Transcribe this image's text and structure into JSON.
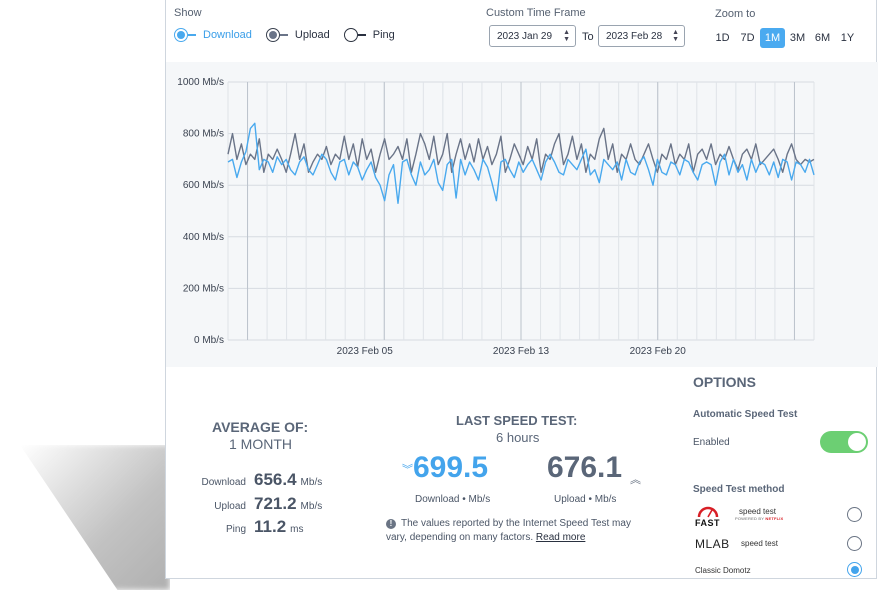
{
  "show": {
    "label": "Show",
    "legend": [
      {
        "label": "Download",
        "color": "#49a9ee",
        "checked": true
      },
      {
        "label": "Upload",
        "color": "#6a7488",
        "checked": true
      },
      {
        "label": "Ping",
        "color": "#2a3140",
        "checked": false
      }
    ]
  },
  "timeframe": {
    "label": "Custom Time Frame",
    "from": "2023 Jan 29",
    "to_label": "To",
    "to": "2023 Feb 28"
  },
  "zoom": {
    "label": "Zoom to",
    "options": [
      "1D",
      "7D",
      "1M",
      "3M",
      "6M",
      "1Y"
    ],
    "active": "1M"
  },
  "chart_data": {
    "type": "line",
    "ylim": [
      0,
      1000
    ],
    "yticks": [
      "0 Mb/s",
      "200 Mb/s",
      "400 Mb/s",
      "600 Mb/s",
      "800 Mb/s",
      "1000 Mb/s"
    ],
    "ytick_values": [
      0,
      200,
      400,
      600,
      800,
      1000
    ],
    "xticks": [
      "2023 Feb 05",
      "2023 Feb 13",
      "2023 Feb 20"
    ],
    "grid": true,
    "series": [
      {
        "color": "#49a9ee",
        "values": [
          690,
          700,
          630,
          690,
          730,
          820,
          840,
          660,
          700,
          690,
          650,
          710,
          680,
          700,
          660,
          640,
          690,
          710,
          660,
          640,
          680,
          720,
          700,
          650,
          620,
          690,
          700,
          640,
          690,
          670,
          620,
          660,
          690,
          630,
          600,
          540,
          640,
          680,
          530,
          690,
          700,
          640,
          600,
          690,
          640,
          660,
          700,
          610,
          580,
          680,
          700,
          550,
          700,
          640,
          690,
          660,
          620,
          700,
          670,
          610,
          540,
          690,
          700,
          660,
          630,
          690,
          650,
          680,
          700,
          660,
          620,
          690,
          720,
          690,
          650,
          640,
          700,
          680,
          660,
          700,
          740,
          640,
          660,
          610,
          700,
          680,
          660,
          690,
          620,
          700,
          650,
          640,
          690,
          710,
          660,
          600,
          700,
          650,
          640,
          690,
          680,
          640,
          700,
          690,
          650,
          620,
          680,
          690,
          680,
          600,
          690,
          720,
          640,
          700,
          650,
          680,
          620,
          700,
          650,
          690,
          680,
          640,
          690,
          630,
          700,
          690,
          620,
          690,
          680,
          650,
          700,
          640
        ]
      },
      {
        "color": "#6a7488",
        "values": [
          720,
          800,
          700,
          760,
          680,
          720,
          700,
          780,
          650,
          720,
          700,
          740,
          700,
          650,
          720,
          800,
          700,
          760,
          650,
          690,
          720,
          700,
          750,
          680,
          720,
          700,
          790,
          700,
          760,
          670,
          780,
          700,
          740,
          650,
          720,
          780,
          700,
          720,
          750,
          700,
          780,
          650,
          720,
          800,
          760,
          700,
          790,
          680,
          720,
          800,
          650,
          720,
          780,
          700,
          760,
          690,
          780,
          700,
          750,
          680,
          720,
          790,
          650,
          700,
          760,
          720,
          680,
          750,
          700,
          780,
          650,
          720,
          700,
          760,
          800,
          680,
          720,
          790,
          700,
          760,
          650,
          720,
          700,
          780,
          820,
          700,
          760,
          650,
          720,
          700,
          760,
          700,
          680,
          720,
          760,
          700,
          650,
          720,
          700,
          760,
          680,
          720,
          700,
          760,
          650,
          720,
          740,
          700,
          760,
          680,
          720,
          700,
          750,
          700,
          660,
          720,
          740,
          700,
          760,
          680,
          700,
          720,
          740,
          700,
          650,
          720,
          760,
          700,
          680,
          700,
          690,
          700
        ]
      }
    ]
  },
  "average": {
    "title": "AVERAGE OF:",
    "period": "1 MONTH",
    "rows": [
      {
        "label": "Download",
        "value": "656.4",
        "unit": "Mb/s"
      },
      {
        "label": "Upload",
        "value": "721.2",
        "unit": "Mb/s"
      },
      {
        "label": "Ping",
        "value": "11.2",
        "unit": "ms"
      }
    ]
  },
  "last_test": {
    "title": "LAST SPEED TEST:",
    "ago": "6 hours",
    "download_value": "699.5",
    "download_caption": "Download • Mb/s",
    "upload_value": "676.1",
    "upload_caption": "Upload • Mb/s",
    "note": "The values reported by the Internet Speed Test may vary, depending on many factors.",
    "note_link": "Read more"
  },
  "options": {
    "title": "OPTIONS",
    "auto_label": "Automatic Speed Test",
    "enabled_label": "Enabled",
    "enabled": true,
    "method_label": "Speed Test method",
    "methods": [
      {
        "logo": "FAST",
        "text": "speed test",
        "sub_prefix": "POWERED BY",
        "sub_brand": "NETFLIX",
        "selected": false
      },
      {
        "logo": "MLAB",
        "text": "speed test",
        "selected": false
      },
      {
        "logo": "",
        "text": "Classic Domotz",
        "selected": true
      }
    ]
  }
}
